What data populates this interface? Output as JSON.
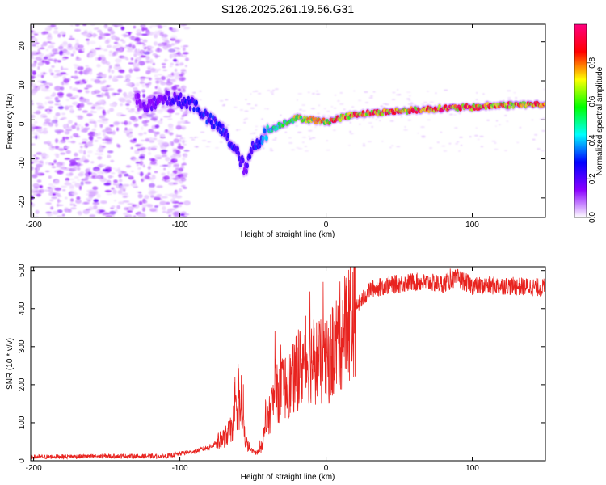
{
  "chart_data": [
    {
      "type": "heatmap",
      "title": "S126.2025.261.19.56.G31",
      "xlabel": "Height of straight line (km)",
      "ylabel": "Frequency (Hz)",
      "xlim": [
        -202,
        150
      ],
      "ylim": [
        -25,
        24.5
      ],
      "xticks": [
        -200,
        -100,
        0,
        100
      ],
      "yticks": [
        -20,
        -10,
        0,
        10,
        20
      ],
      "colorbar": {
        "label": "Normalized spectral amplitude",
        "range": [
          0,
          1
        ],
        "ticks": [
          0.0,
          0.2,
          0.4,
          0.6,
          0.8
        ],
        "colors": [
          "#ffffff",
          "#8a00ff",
          "#0000ff",
          "#00ffff",
          "#00ff00",
          "#ffff00",
          "#ff0000",
          "#ff0080"
        ]
      },
      "ridge": {
        "x": [
          -130,
          -120,
          -110,
          -100,
          -90,
          -80,
          -70,
          -60,
          -55,
          -50,
          -45,
          -40,
          -30,
          -20,
          -10,
          0,
          20,
          40,
          60,
          80,
          100,
          120,
          150
        ],
        "freq": [
          5,
          3.5,
          5.5,
          5,
          4,
          0,
          -3,
          -9,
          -13,
          -7,
          -5,
          -3,
          -1,
          0.5,
          0,
          -0.5,
          1.5,
          2,
          2.5,
          3,
          3.2,
          3.8,
          4
        ],
        "amplitude": [
          0.15,
          0.18,
          0.2,
          0.25,
          0.3,
          0.3,
          0.3,
          0.28,
          0.2,
          0.3,
          0.35,
          0.45,
          0.6,
          0.7,
          0.75,
          0.8,
          0.85,
          0.85,
          0.85,
          0.9,
          0.85,
          0.85,
          0.8
        ]
      },
      "noise_region_x": [
        -202,
        -95
      ]
    },
    {
      "type": "line",
      "xlabel": "Height of straight line (km)",
      "ylabel": "SNR (10 * v/v)",
      "xlim": [
        -202,
        150
      ],
      "ylim": [
        0,
        510
      ],
      "xticks": [
        -200,
        -100,
        0,
        100
      ],
      "yticks": [
        0,
        100,
        200,
        300,
        400,
        500
      ],
      "color": "#e8231f",
      "series": [
        {
          "name": "SNR",
          "x": [
            -202,
            -150,
            -110,
            -90,
            -80,
            -70,
            -65,
            -60,
            -57,
            -55,
            -52,
            -48,
            -45,
            -40,
            -35,
            -30,
            -25,
            -20,
            -15,
            -10,
            -5,
            0,
            10,
            20,
            30,
            40,
            60,
            80,
            90,
            100,
            120,
            150
          ],
          "y": [
            10,
            12,
            12,
            25,
            35,
            60,
            80,
            150,
            100,
            50,
            30,
            20,
            30,
            100,
            170,
            190,
            200,
            230,
            260,
            270,
            260,
            250,
            330,
            400,
            450,
            460,
            470,
            465,
            480,
            460,
            460,
            455
          ],
          "spikes": [
            {
              "x": -58,
              "y": 225
            },
            {
              "x": -35,
              "y": 340
            },
            {
              "x": -31,
              "y": 305
            },
            {
              "x": -26,
              "y": 290
            },
            {
              "x": -19,
              "y": 345
            },
            {
              "x": -11,
              "y": 445
            },
            {
              "x": -2,
              "y": 470
            },
            {
              "x": 85,
              "y": 505
            }
          ]
        }
      ]
    }
  ]
}
